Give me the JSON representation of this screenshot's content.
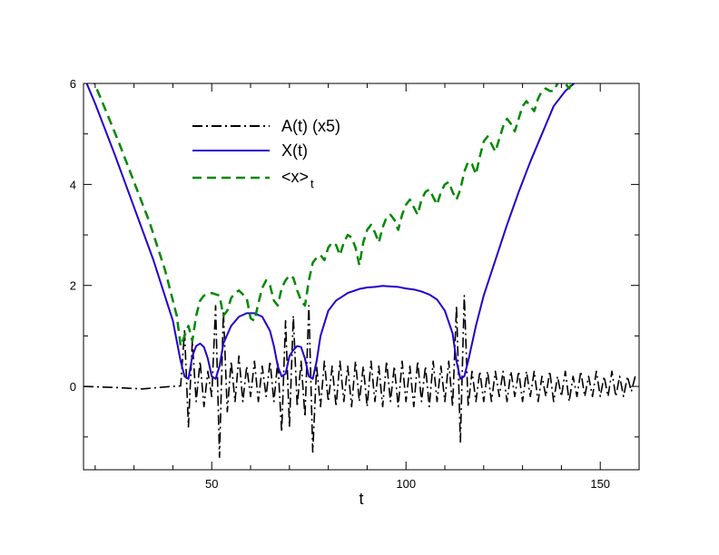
{
  "chart_data": {
    "type": "line",
    "xlabel": "t",
    "ylabel": "",
    "xlim": [
      17,
      160
    ],
    "ylim": [
      -1.65,
      6
    ],
    "x_ticks": [
      50,
      100,
      150
    ],
    "y_ticks": [
      0,
      2,
      4,
      6
    ],
    "grid": false,
    "legend_position": "top-left",
    "series": [
      {
        "name": "A(t) (x5)",
        "style": "dash-dot",
        "color": "#000000",
        "points": [
          [
            17,
            0
          ],
          [
            25,
            -0.02
          ],
          [
            32,
            -0.05
          ],
          [
            38,
            -0.01
          ],
          [
            42,
            0.01
          ],
          [
            43,
            1.1
          ],
          [
            44,
            -0.8
          ],
          [
            45,
            0.9
          ],
          [
            46,
            -0.3
          ],
          [
            47,
            0.5
          ],
          [
            48,
            -0.4
          ],
          [
            49,
            0.3
          ],
          [
            50,
            -0.2
          ],
          [
            51,
            1.6
          ],
          [
            52,
            -1.4
          ],
          [
            53,
            1.5
          ],
          [
            54,
            -0.5
          ],
          [
            55,
            0.5
          ],
          [
            56,
            -0.3
          ],
          [
            57,
            0.6
          ],
          [
            58,
            -0.3
          ],
          [
            59,
            0.4
          ],
          [
            60,
            -0.2
          ],
          [
            61,
            0.5
          ],
          [
            62,
            -0.3
          ],
          [
            63,
            0.4
          ],
          [
            64,
            -0.2
          ],
          [
            65,
            0.5
          ],
          [
            66,
            -0.3
          ],
          [
            67,
            0.5
          ],
          [
            68,
            -0.9
          ],
          [
            69,
            1.3
          ],
          [
            70,
            -0.8
          ],
          [
            71,
            1.4
          ],
          [
            72,
            -0.4
          ],
          [
            73,
            0.5
          ],
          [
            74,
            -0.6
          ],
          [
            75,
            1.6
          ],
          [
            76,
            -1.3
          ],
          [
            77,
            0.4
          ],
          [
            78,
            -0.4
          ],
          [
            79,
            0.5
          ],
          [
            80,
            -0.3
          ],
          [
            81,
            0.4
          ],
          [
            82,
            -0.4
          ],
          [
            83,
            0.5
          ],
          [
            84,
            -0.3
          ],
          [
            85,
            0.4
          ],
          [
            86,
            -0.4
          ],
          [
            87,
            0.5
          ],
          [
            88,
            -0.3
          ],
          [
            89,
            0.4
          ],
          [
            90,
            -0.4
          ],
          [
            91,
            0.5
          ],
          [
            92,
            -0.3
          ],
          [
            93,
            0.4
          ],
          [
            94,
            -0.4
          ],
          [
            95,
            0.5
          ],
          [
            96,
            -0.3
          ],
          [
            97,
            0.4
          ],
          [
            98,
            -0.4
          ],
          [
            99,
            0.5
          ],
          [
            100,
            -0.3
          ],
          [
            101,
            0.4
          ],
          [
            102,
            -0.4
          ],
          [
            103,
            0.5
          ],
          [
            104,
            -0.3
          ],
          [
            105,
            0.4
          ],
          [
            106,
            -0.4
          ],
          [
            107,
            0.5
          ],
          [
            108,
            -0.3
          ],
          [
            109,
            0.4
          ],
          [
            110,
            -0.3
          ],
          [
            111,
            0.5
          ],
          [
            112,
            -0.4
          ],
          [
            113,
            1.6
          ],
          [
            114,
            -1.1
          ],
          [
            115,
            1.8
          ],
          [
            116,
            -0.4
          ],
          [
            117,
            0.3
          ],
          [
            118,
            -0.3
          ],
          [
            119,
            0.3
          ],
          [
            120,
            -0.3
          ],
          [
            121,
            0.3
          ],
          [
            122,
            -0.3
          ],
          [
            123,
            0.3
          ],
          [
            124,
            -0.2
          ],
          [
            125,
            0.3
          ],
          [
            126,
            -0.3
          ],
          [
            127,
            0.3
          ],
          [
            128,
            -0.2
          ],
          [
            129,
            0.3
          ],
          [
            130,
            -0.3
          ],
          [
            131,
            0.3
          ],
          [
            132,
            -0.2
          ],
          [
            133,
            0.3
          ],
          [
            134,
            -0.3
          ],
          [
            135,
            0.2
          ],
          [
            136,
            -0.2
          ],
          [
            137,
            0.3
          ],
          [
            138,
            -0.3
          ],
          [
            139,
            0.2
          ],
          [
            140,
            -0.2
          ],
          [
            141,
            0.3
          ],
          [
            142,
            -0.3
          ],
          [
            143,
            0.2
          ],
          [
            144,
            -0.2
          ],
          [
            145,
            0.3
          ],
          [
            146,
            -0.2
          ],
          [
            147,
            0.2
          ],
          [
            148,
            -0.2
          ],
          [
            149,
            0.3
          ],
          [
            150,
            -0.2
          ],
          [
            151,
            0.2
          ],
          [
            152,
            -0.2
          ],
          [
            153,
            0.3
          ],
          [
            154,
            -0.2
          ],
          [
            155,
            0.2
          ],
          [
            156,
            -0.2
          ],
          [
            157,
            0.2
          ],
          [
            158,
            -0.1
          ],
          [
            159,
            0.2
          ],
          [
            160,
            0.2
          ]
        ]
      },
      {
        "name": "X(t)",
        "style": "solid",
        "color": "#2200cc",
        "points": [
          [
            17,
            6.15
          ],
          [
            20,
            5.6
          ],
          [
            25,
            4.6
          ],
          [
            30,
            3.55
          ],
          [
            35,
            2.5
          ],
          [
            40,
            1.3
          ],
          [
            42,
            0.5
          ],
          [
            43,
            0.2
          ],
          [
            44,
            0.15
          ],
          [
            45,
            0.6
          ],
          [
            46,
            0.8
          ],
          [
            47,
            0.85
          ],
          [
            48,
            0.78
          ],
          [
            49,
            0.55
          ],
          [
            50,
            0.2
          ],
          [
            51,
            0.15
          ],
          [
            52,
            0.4
          ],
          [
            53,
            0.85
          ],
          [
            55,
            1.2
          ],
          [
            57,
            1.38
          ],
          [
            59,
            1.45
          ],
          [
            61,
            1.45
          ],
          [
            63,
            1.38
          ],
          [
            65,
            1.1
          ],
          [
            66,
            0.8
          ],
          [
            67,
            0.4
          ],
          [
            68,
            0.2
          ],
          [
            69,
            0.25
          ],
          [
            70,
            0.6
          ],
          [
            71,
            0.72
          ],
          [
            72,
            0.8
          ],
          [
            73,
            0.78
          ],
          [
            74,
            0.55
          ],
          [
            75,
            0.2
          ],
          [
            76,
            0.15
          ],
          [
            77,
            0.5
          ],
          [
            78,
            1.0
          ],
          [
            80,
            1.5
          ],
          [
            82,
            1.7
          ],
          [
            85,
            1.85
          ],
          [
            88,
            1.93
          ],
          [
            90,
            1.96
          ],
          [
            92,
            1.97
          ],
          [
            94,
            1.99
          ],
          [
            96,
            1.98
          ],
          [
            98,
            1.97
          ],
          [
            100,
            1.94
          ],
          [
            102,
            1.92
          ],
          [
            104,
            1.88
          ],
          [
            106,
            1.82
          ],
          [
            108,
            1.72
          ],
          [
            110,
            1.5
          ],
          [
            112,
            1.05
          ],
          [
            113,
            0.5
          ],
          [
            114,
            0.15
          ],
          [
            115,
            0.2
          ],
          [
            116,
            0.5
          ],
          [
            118,
            1.2
          ],
          [
            120,
            1.8
          ],
          [
            123,
            2.5
          ],
          [
            126,
            3.2
          ],
          [
            129,
            3.85
          ],
          [
            132,
            4.45
          ],
          [
            135,
            5.0
          ],
          [
            138,
            5.55
          ],
          [
            141,
            5.85
          ],
          [
            144,
            6.05
          ]
        ]
      },
      {
        "name": "<x>t",
        "style": "dashed",
        "color": "#008800",
        "points": [
          [
            19,
            6.15
          ],
          [
            22,
            5.6
          ],
          [
            26,
            4.85
          ],
          [
            30,
            4.05
          ],
          [
            34,
            3.25
          ],
          [
            38,
            2.3
          ],
          [
            41,
            1.4
          ],
          [
            42,
            0.8
          ],
          [
            43,
            1.0
          ],
          [
            44,
            1.2
          ],
          [
            45,
            0.9
          ],
          [
            46,
            1.4
          ],
          [
            47,
            1.7
          ],
          [
            48,
            1.8
          ],
          [
            50,
            1.85
          ],
          [
            52,
            1.8
          ],
          [
            53,
            1.4
          ],
          [
            54,
            1.5
          ],
          [
            55,
            1.75
          ],
          [
            56,
            1.85
          ],
          [
            57,
            1.9
          ],
          [
            59,
            1.75
          ],
          [
            60,
            1.35
          ],
          [
            61,
            1.3
          ],
          [
            62,
            1.65
          ],
          [
            63,
            1.95
          ],
          [
            64,
            2.1
          ],
          [
            65,
            2.0
          ],
          [
            66,
            1.7
          ],
          [
            67,
            1.6
          ],
          [
            68,
            1.95
          ],
          [
            69,
            2.1
          ],
          [
            70,
            2.2
          ],
          [
            71,
            2.15
          ],
          [
            72,
            1.9
          ],
          [
            73,
            1.7
          ],
          [
            74,
            1.6
          ],
          [
            75,
            2.1
          ],
          [
            76,
            2.45
          ],
          [
            77,
            2.55
          ],
          [
            78,
            2.6
          ],
          [
            79,
            2.5
          ],
          [
            80,
            2.75
          ],
          [
            81,
            2.85
          ],
          [
            82,
            2.8
          ],
          [
            83,
            2.6
          ],
          [
            84,
            2.85
          ],
          [
            85,
            3.0
          ],
          [
            86,
            2.95
          ],
          [
            87,
            2.75
          ],
          [
            88,
            2.4
          ],
          [
            89,
            2.85
          ],
          [
            90,
            3.1
          ],
          [
            91,
            3.2
          ],
          [
            92,
            3.05
          ],
          [
            93,
            2.85
          ],
          [
            94,
            3.15
          ],
          [
            95,
            3.35
          ],
          [
            96,
            3.4
          ],
          [
            97,
            3.3
          ],
          [
            98,
            3.1
          ],
          [
            99,
            3.4
          ],
          [
            100,
            3.6
          ],
          [
            101,
            3.7
          ],
          [
            102,
            3.55
          ],
          [
            103,
            3.4
          ],
          [
            104,
            3.7
          ],
          [
            105,
            3.85
          ],
          [
            106,
            3.9
          ],
          [
            107,
            3.75
          ],
          [
            108,
            3.6
          ],
          [
            109,
            3.85
          ],
          [
            110,
            4.0
          ],
          [
            111,
            4.05
          ],
          [
            112,
            3.85
          ],
          [
            113,
            3.7
          ],
          [
            114,
            3.9
          ],
          [
            115,
            4.25
          ],
          [
            116,
            4.45
          ],
          [
            117,
            4.4
          ],
          [
            118,
            4.2
          ],
          [
            119,
            4.55
          ],
          [
            120,
            4.85
          ],
          [
            121,
            4.95
          ],
          [
            122,
            4.8
          ],
          [
            123,
            4.65
          ],
          [
            124,
            4.9
          ],
          [
            125,
            5.15
          ],
          [
            126,
            5.3
          ],
          [
            127,
            5.2
          ],
          [
            128,
            5.05
          ],
          [
            129,
            5.3
          ],
          [
            130,
            5.55
          ],
          [
            131,
            5.65
          ],
          [
            132,
            5.55
          ],
          [
            133,
            5.45
          ],
          [
            134,
            5.7
          ],
          [
            135,
            5.85
          ],
          [
            136,
            5.9
          ],
          [
            137,
            5.85
          ],
          [
            138,
            5.85
          ],
          [
            139,
            6.0
          ],
          [
            140,
            6.05
          ],
          [
            141,
            6.0
          ],
          [
            142,
            5.9
          ],
          [
            143,
            6.05
          ],
          [
            144,
            6.15
          ]
        ]
      }
    ]
  },
  "legend": {
    "items": [
      {
        "label": "A(t) (x5)",
        "sub": ""
      },
      {
        "label": "X(t)",
        "sub": ""
      },
      {
        "label": "<x>",
        "sub": "t"
      }
    ]
  }
}
